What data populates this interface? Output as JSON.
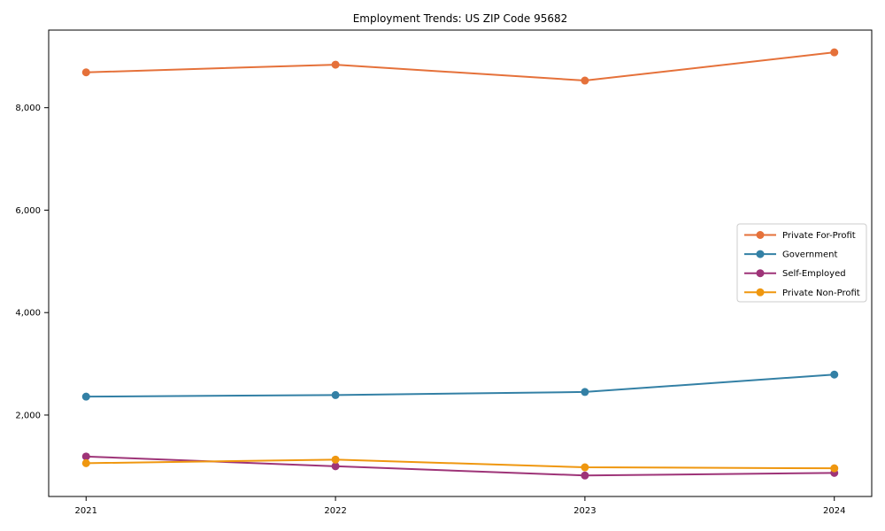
{
  "window": {
    "background": "#ffffff",
    "spine_color": "#000000",
    "text_color": "#000000",
    "legend_border_color": "#cccccc",
    "legend_background": "#ffffff"
  },
  "chart_data": {
    "type": "line",
    "title": "Employment Trends: US ZIP Code 95682",
    "xlabel": "",
    "ylabel": "",
    "x": [
      2021,
      2022,
      2023,
      2024
    ],
    "x_tick_labels": [
      "2021",
      "2022",
      "2023",
      "2024"
    ],
    "y_ticks": [
      {
        "value": 2000,
        "label": "2,000"
      },
      {
        "value": 4000,
        "label": "4,000"
      },
      {
        "value": 6000,
        "label": "6,000"
      },
      {
        "value": 8000,
        "label": "8,000"
      }
    ],
    "xlim": [
      2020.85,
      2024.15
    ],
    "ylim": [
      410,
      9515
    ],
    "grid": false,
    "legend_position": "right",
    "series": [
      {
        "name": "Private For-Profit",
        "color": "#E5713A",
        "values": [
          8690,
          8840,
          8530,
          9080
        ]
      },
      {
        "name": "Government",
        "color": "#3380A5",
        "values": [
          2360,
          2390,
          2450,
          2790
        ]
      },
      {
        "name": "Self-Employed",
        "color": "#9E3478",
        "values": [
          1190,
          1000,
          820,
          870
        ]
      },
      {
        "name": "Private Non-Profit",
        "color": "#EF970F",
        "values": [
          1060,
          1130,
          980,
          960
        ]
      }
    ]
  }
}
